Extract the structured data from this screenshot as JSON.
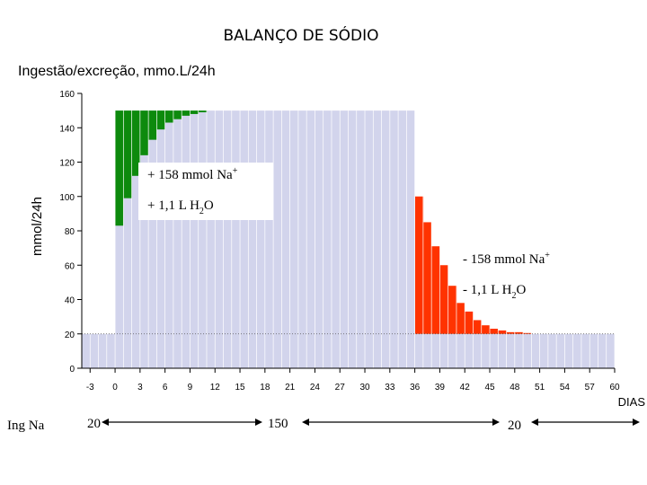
{
  "slide_title": "BALANÇO DE SÓDIO",
  "chart_data": {
    "type": "bar",
    "title": "Ingestão/excreção, mmo.L/24h",
    "ylabel": "mmol/24h",
    "xlabel": "DIAS",
    "ylim": [
      0,
      160
    ],
    "xlim": [
      -4,
      60
    ],
    "y_ticks": [
      "0",
      "20",
      "40",
      "60",
      "80",
      "100",
      "120",
      "140",
      "160"
    ],
    "x_ticks": [
      "-3",
      "0",
      "3",
      "6",
      "9",
      "12",
      "15",
      "18",
      "21",
      "24",
      "27",
      "30",
      "33",
      "36",
      "39",
      "42",
      "45",
      "48",
      "51",
      "54",
      "57",
      "60"
    ],
    "colors": {
      "intake": "#d2d4ec",
      "retention": "#0d8a0d",
      "loss": "#ff3300",
      "grid": "#ffffff"
    },
    "intake_periods": [
      {
        "from": -4,
        "to": 0,
        "value": 20
      },
      {
        "from": 0,
        "to": 36,
        "value": 150
      },
      {
        "from": 36,
        "to": 60,
        "value": 20
      }
    ],
    "series": [
      {
        "name": "excreção",
        "days": [
          0,
          1,
          2,
          3,
          4,
          5,
          6,
          7,
          8,
          9,
          10
        ],
        "values": [
          83,
          99,
          112,
          124,
          133,
          139,
          143,
          145,
          147,
          148,
          149
        ]
      },
      {
        "name": "excreção",
        "days": [
          36,
          37,
          38,
          39,
          40,
          41,
          42,
          43,
          44,
          45,
          46,
          47,
          48,
          49,
          50
        ],
        "values": [
          100,
          85,
          71,
          60,
          48,
          38,
          33,
          28,
          25,
          23,
          22,
          21,
          21,
          20.5,
          20
        ]
      }
    ],
    "annotations": {
      "gain_sodium": "+ 158 mmol Na",
      "gain_sodium_sup": "+",
      "gain_water": "+ 1,1 L H",
      "gain_water_sub": "2",
      "gain_water_end": "O",
      "loss_sodium": "- 158 mmol Na",
      "loss_sodium_sup": "+",
      "loss_water": "- 1,1 L H",
      "loss_water_sub": "2",
      "loss_water_end": "O"
    },
    "intake_row": {
      "label": "Ing Na",
      "values": [
        "20",
        "150",
        "20"
      ]
    }
  }
}
